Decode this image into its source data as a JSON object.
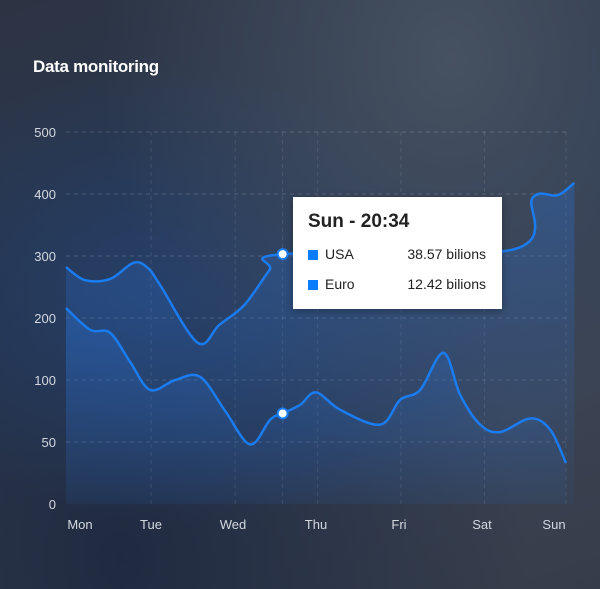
{
  "chart_data": {
    "type": "area",
    "title": "Data monitoring",
    "x_labels": [
      "Mon",
      "Tue",
      "Wed",
      "Thu",
      "Fri",
      "Sat",
      "Sun"
    ],
    "y_ticks": [
      0,
      50,
      100,
      200,
      300,
      400,
      500
    ],
    "grid": true,
    "series": [
      {
        "color": "#1a7cf0",
        "points": [
          [
            0,
            282
          ],
          [
            0.23,
            261
          ],
          [
            0.53,
            263
          ],
          [
            0.81,
            289
          ],
          [
            0.98,
            281
          ],
          [
            1.13,
            253
          ],
          [
            1.58,
            160
          ],
          [
            1.84,
            189
          ],
          [
            2.14,
            221
          ],
          [
            2.44,
            277
          ],
          [
            2.6,
            303
          ],
          [
            5.35,
            310
          ],
          [
            5.6,
            394
          ],
          [
            5.9,
            398
          ],
          [
            6.1,
            418
          ]
        ]
      },
      {
        "color": "#1a7cf0",
        "points": [
          [
            0,
            216
          ],
          [
            0.29,
            181
          ],
          [
            0.53,
            176
          ],
          [
            0.77,
            129
          ],
          [
            1.01,
            92
          ],
          [
            1.31,
            100
          ],
          [
            1.61,
            105
          ],
          [
            1.91,
            75
          ],
          [
            2.21,
            48
          ],
          [
            2.45,
            68
          ],
          [
            2.6,
            73
          ],
          [
            2.81,
            80
          ],
          [
            3.0,
            90
          ],
          [
            3.29,
            76
          ],
          [
            3.77,
            64
          ],
          [
            4.01,
            84
          ],
          [
            4.25,
            92
          ],
          [
            4.53,
            144
          ],
          [
            4.73,
            88
          ],
          [
            4.97,
            64
          ],
          [
            5.21,
            58
          ],
          [
            5.57,
            69
          ],
          [
            5.81,
            60
          ],
          [
            6.0,
            33
          ]
        ]
      }
    ],
    "highlight_x": 2.6,
    "tooltip": {
      "title": "Sun - 20:34",
      "rows": [
        {
          "label": "USA",
          "value": "38.57 bilions",
          "color": "#0a7cff"
        },
        {
          "label": "Euro",
          "value": "12.42 bilions",
          "color": "#0a7cff"
        }
      ]
    }
  }
}
